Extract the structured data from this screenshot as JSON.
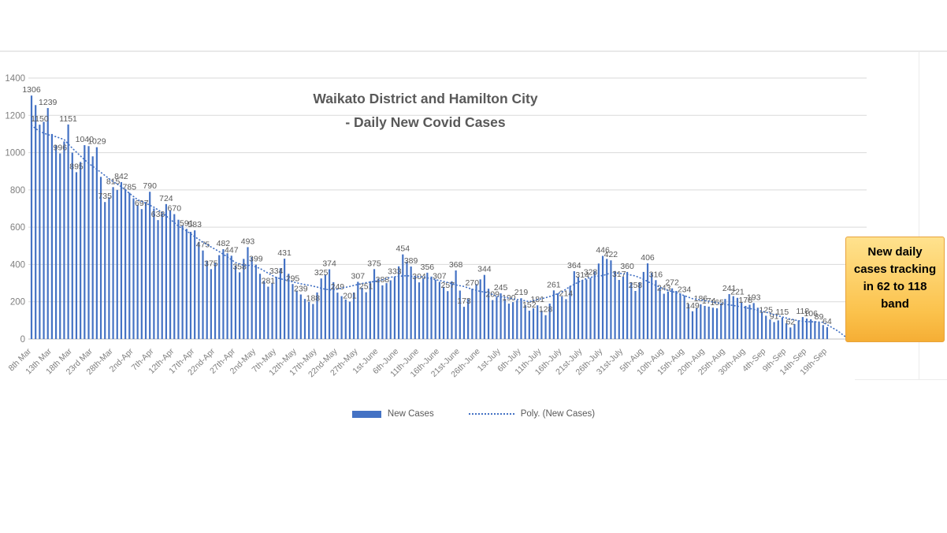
{
  "chart": {
    "title_line1": "Waikato District and Hamilton City",
    "title_line2": "- Daily New Covid Cases",
    "legend": {
      "bar_label": "New Cases",
      "line_label": "Poly. (New Cases)"
    },
    "colors": {
      "bar": "#4472C4",
      "trendline": "#4472C4",
      "gridline": "#D9D9D9",
      "axis_text": "#7F7F7F",
      "data_label_text": "#595959",
      "title_text": "#595959"
    }
  },
  "callout": {
    "text": "New daily cases tracking in 62 to 118 band",
    "bg_top": "#FFE28E",
    "bg_bottom": "#F5AE35",
    "border": "#E8A23B"
  },
  "chart_data": {
    "type": "bar",
    "title": "Waikato District and Hamilton City - Daily New Covid Cases",
    "series_name": "New Cases",
    "trendline_name": "Poly. (New Cases)",
    "xlabel": "",
    "ylabel": "",
    "ylim": [
      0,
      1400
    ],
    "y_ticks": [
      "0",
      "200",
      "400",
      "600",
      "800",
      "1000",
      "1200",
      "1400"
    ],
    "grid": true,
    "legend_position": "bottom",
    "x_tick_interval_days": 5,
    "x_tick_labels": [
      "8th Mar",
      "13th Mar",
      "18th Mar",
      "23rd Mar",
      "28th-Mar",
      "2nd-Apr",
      "7th-Apr",
      "12th-Apr",
      "17th-Apr",
      "22nd-Apr",
      "27th-Apr",
      "2nd-May",
      "7th-May",
      "12th-May",
      "17th-May",
      "22nd-May",
      "27th-May",
      "1st-June",
      "6th-June",
      "11th-June",
      "16th-June",
      "21st-June",
      "26th-June",
      "1st-July",
      "6th-July",
      "11th-July",
      "16th-July",
      "21st-July",
      "26th-July",
      "31st-July",
      "5th-Aug",
      "10th-Aug",
      "15th-Aug",
      "20th-Aug",
      "25th-Aug",
      "30th-Aug",
      "4th-Sep",
      "9th-Sep",
      "14th-Sep",
      "19th-Sep"
    ],
    "values": [
      1306,
      1255,
      1150,
      1165,
      1239,
      1100,
      1040,
      996,
      1060,
      1151,
      1000,
      895,
      950,
      1040,
      1035,
      980,
      1029,
      870,
      735,
      760,
      815,
      800,
      842,
      805,
      785,
      755,
      720,
      697,
      735,
      790,
      700,
      638,
      672,
      724,
      690,
      670,
      640,
      610,
      591,
      575,
      583,
      520,
      475,
      420,
      375,
      410,
      450,
      482,
      460,
      447,
      395,
      358,
      430,
      493,
      440,
      399,
      350,
      310,
      281,
      300,
      334,
      380,
      431,
      350,
      295,
      260,
      239,
      215,
      200,
      188,
      250,
      325,
      345,
      374,
      305,
      249,
      230,
      212,
      201,
      250,
      307,
      275,
      251,
      310,
      375,
      325,
      288,
      300,
      315,
      333,
      390,
      454,
      415,
      389,
      340,
      304,
      325,
      356,
      335,
      318,
      307,
      280,
      257,
      310,
      368,
      260,
      173,
      215,
      270,
      295,
      320,
      344,
      270,
      209,
      225,
      245,
      215,
      190,
      198,
      208,
      219,
      182,
      152,
      165,
      181,
      152,
      128,
      190,
      261,
      245,
      228,
      214,
      285,
      364,
      335,
      314,
      320,
      328,
      365,
      405,
      446,
      430,
      422,
      365,
      317,
      335,
      360,
      305,
      258,
      305,
      360,
      406,
      355,
      316,
      275,
      243,
      255,
      272,
      258,
      245,
      234,
      188,
      149,
      165,
      186,
      178,
      174,
      168,
      165,
      190,
      215,
      241,
      230,
      221,
      196,
      178,
      184,
      193,
      168,
      145,
      125,
      105,
      91,
      100,
      115,
      85,
      62,
      80,
      100,
      118,
      110,
      106,
      96,
      89,
      75,
      64
    ],
    "label_indices": [
      0,
      2,
      4,
      7,
      9,
      11,
      13,
      16,
      18,
      20,
      22,
      24,
      27,
      29,
      31,
      33,
      35,
      38,
      40,
      42,
      44,
      47,
      49,
      51,
      53,
      55,
      58,
      60,
      62,
      64,
      66,
      69,
      71,
      73,
      75,
      78,
      80,
      82,
      84,
      86,
      89,
      91,
      93,
      95,
      97,
      100,
      102,
      104,
      106,
      108,
      111,
      113,
      115,
      117,
      120,
      122,
      124,
      126,
      128,
      131,
      133,
      135,
      137,
      140,
      142,
      144,
      146,
      148,
      151,
      153,
      155,
      157,
      160,
      162,
      164,
      166,
      168,
      171,
      173,
      175,
      177,
      180,
      182,
      184,
      186,
      189,
      191,
      193,
      195
    ],
    "visible_data_labels": [
      1306,
      1150,
      1239,
      996,
      1151,
      895,
      1040,
      1029,
      735,
      815,
      842,
      785,
      697,
      790,
      638,
      724,
      670,
      591,
      583,
      475,
      375,
      482,
      447,
      358,
      493,
      399,
      281,
      334,
      431,
      295,
      239,
      188,
      325,
      374,
      249,
      201,
      307,
      251,
      375,
      288,
      333,
      454,
      389,
      304,
      356,
      307,
      257,
      368,
      173,
      270,
      344,
      209,
      245,
      190,
      219,
      152,
      181,
      128,
      261,
      214,
      364,
      314,
      328,
      446,
      422,
      317,
      360,
      258,
      406,
      316,
      243,
      272,
      234,
      149,
      186,
      174,
      165,
      241,
      221,
      178,
      193,
      125,
      91,
      115,
      62,
      118,
      106,
      89,
      64
    ]
  }
}
